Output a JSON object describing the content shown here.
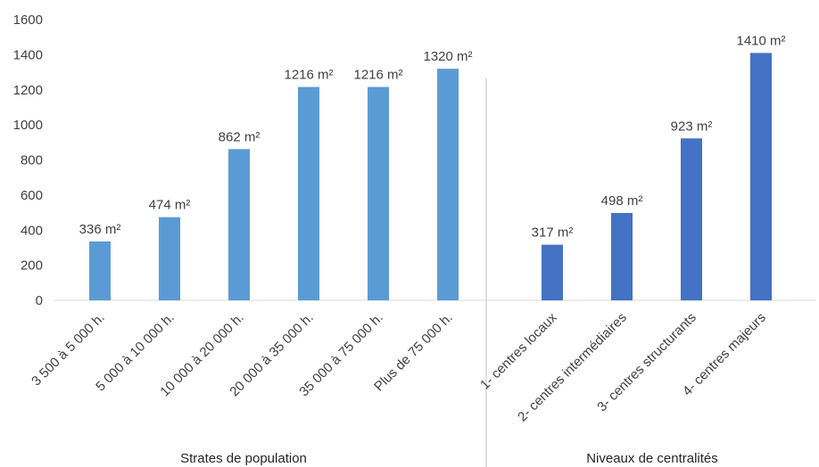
{
  "chart_data": {
    "type": "bar",
    "ylim": [
      0,
      1600
    ],
    "yticks": [
      0,
      200,
      400,
      600,
      800,
      1000,
      1200,
      1400,
      1600
    ],
    "grid": false,
    "groups": [
      {
        "label": "Strates de population",
        "color": "#5b9bd5",
        "categories": [
          "3 500 à 5 000 h.",
          "5 000 à 10 000 h.",
          "10 000 à 20 000 h.",
          "20 000 à 35 000 h.",
          "35 000 à 75 000 h.",
          "Plus de 75 000 h."
        ],
        "values": [
          336,
          474,
          862,
          1216,
          1216,
          1320
        ],
        "labels": [
          "336 m²",
          "474 m²",
          "862 m²",
          "1216 m²",
          "1216 m²",
          "1320 m²"
        ]
      },
      {
        "label": "Niveaux de centralités",
        "color": "#4472c4",
        "categories": [
          "1- centres locaux",
          "2- centres intermédiaires",
          "3- centres structurants",
          "4- centres majeurs"
        ],
        "values": [
          317,
          498,
          923,
          1410
        ],
        "labels": [
          "317 m²",
          "498 m²",
          "923 m²",
          "1410 m²"
        ]
      }
    ]
  }
}
